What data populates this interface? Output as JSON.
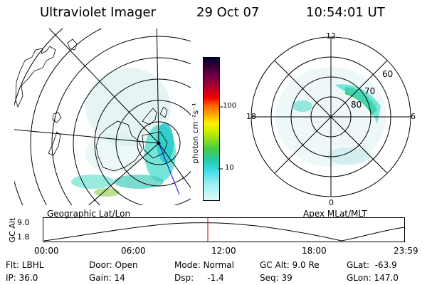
{
  "header": {
    "instrument": "Ultraviolet Imager",
    "date": "29 Oct 07",
    "time": "10:54:01 UT"
  },
  "colorbar": {
    "unit_label": "photon cm⁻²s⁻¹",
    "ticks": [
      "100",
      "10"
    ],
    "colors": [
      "#000033",
      "#220033",
      "#660044",
      "#aa0033",
      "#ee0000",
      "#ff6600",
      "#ffaa00",
      "#ffee00",
      "#ccee00",
      "#88dd22",
      "#44cc44",
      "#22ccaa",
      "#44ddee",
      "#99eeee",
      "#ccffff"
    ]
  },
  "left_map": {
    "caption": "Geographic Lat/Lon"
  },
  "right_map": {
    "caption": "Apex MLat/MLT",
    "mlt_labels": {
      "top": "12",
      "left": "18",
      "right": "6",
      "bottom": "0"
    },
    "lat_labels": [
      "60",
      "70",
      "80"
    ]
  },
  "altitude_panel": {
    "ylabel": "GC Alt",
    "yticks": [
      "9.0",
      "1.8"
    ],
    "xticks": [
      "00:00",
      "06:00",
      "12:00",
      "18:00",
      "23:59"
    ],
    "current_time_marker_color": "#cc0000"
  },
  "status": {
    "flt": "Flt: LBHL",
    "ip": "IP: 36.0",
    "door": "Door: Open",
    "gain": "Gain: 14",
    "mode": "Mode: Normal",
    "dsp": "Dsp:     -1.4",
    "gcalt": "GC Alt: 9.0 Re",
    "seq": "Seq: 39",
    "glat": "GLat:  -63.9",
    "glon": "GLon: 147.0"
  }
}
